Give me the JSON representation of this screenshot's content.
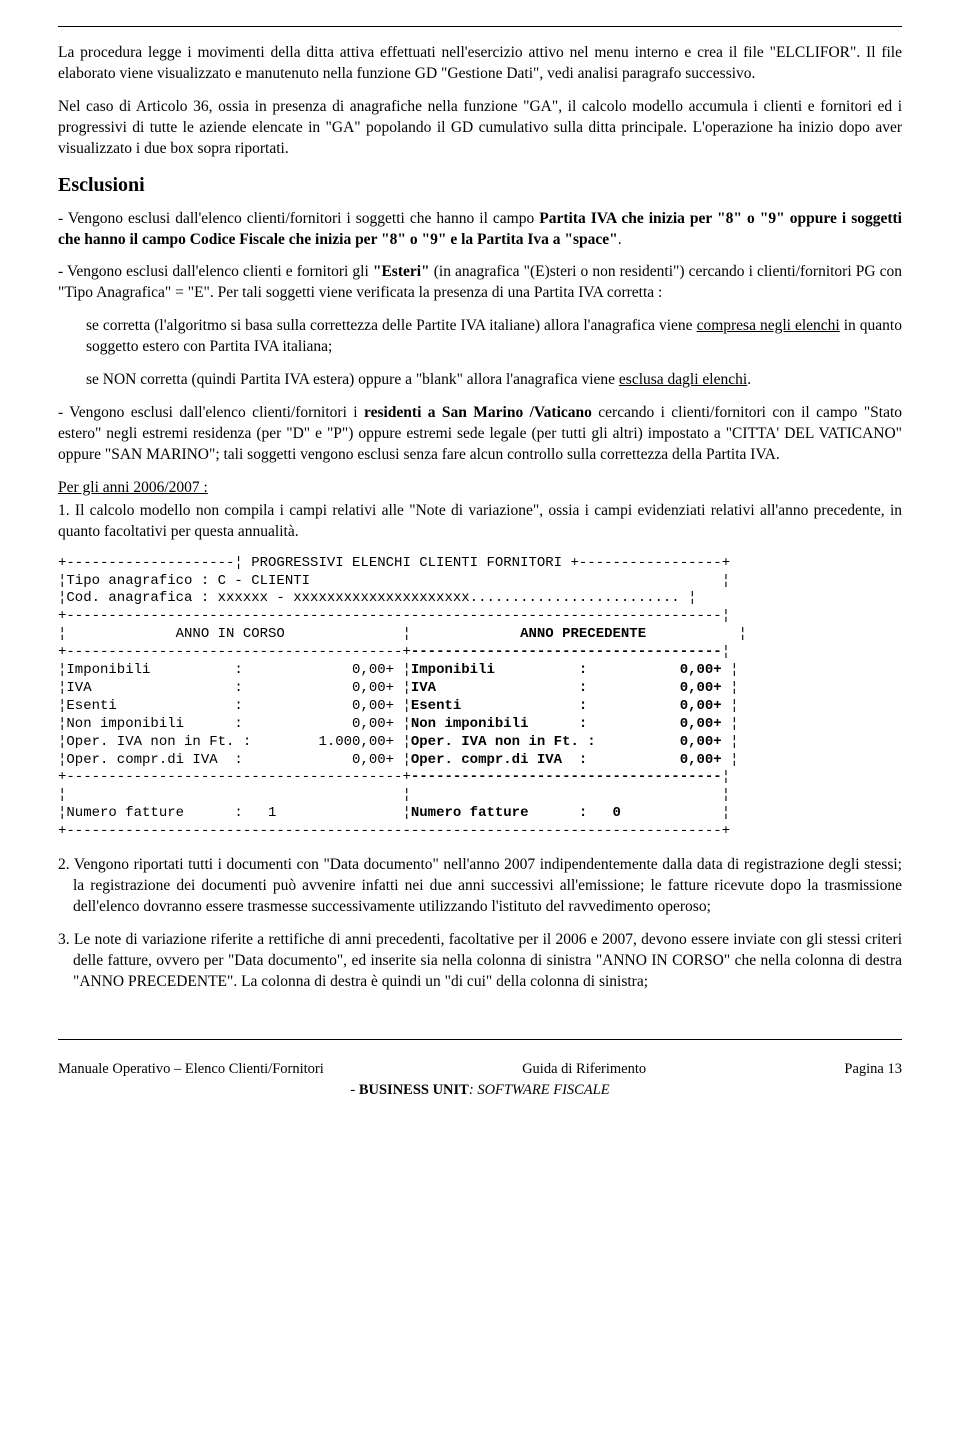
{
  "hr_top": true,
  "p1": "La procedura legge i movimenti della ditta attiva effettuati nell'esercizio attivo nel menu interno e crea il file \"ELCLIFOR\". Il file elaborato viene visualizzato e manutenuto nella funzione GD \"Gestione Dati\", vedi analisi paragrafo successivo.",
  "p2": "Nel caso di Articolo 36, ossia in presenza di anagrafiche nella funzione \"GA\", il calcolo modello accumula i clienti e fornitori ed i progressivi di tutte le aziende elencate in \"GA\" popolando il GD cumulativo sulla ditta principale. L'operazione ha inizio dopo aver visualizzato i due box sopra riportati.",
  "h_esclusioni": "Esclusioni",
  "p3a": "- Vengono esclusi dall'elenco clienti/fornitori i soggetti che hanno il campo ",
  "p3b": "Partita IVA che inizia per \"8\" o \"9\" oppure i soggetti che hanno il campo Codice Fiscale che inizia per \"8\" o \"9\" e la Partita Iva a \"space\"",
  "p3c": ".",
  "p4a": "- Vengono esclusi dall'elenco clienti e fornitori gli ",
  "p4b": "\"Esteri\"",
  "p4c": " (in anagrafica \"(E)steri o non residenti\") cercando i clienti/fornitori PG con \"Tipo Anagrafica\" = \"E\". Per tali soggetti viene verificata la presenza di una Partita IVA corretta :",
  "p5a": "se corretta (l'algoritmo si basa sulla correttezza delle Partite IVA italiane) allora l'anagrafica viene ",
  "p5u": "compresa negli elenchi",
  "p5b": " in quanto soggetto estero con Partita IVA italiana;",
  "p6a": "se NON corretta (quindi Partita IVA estera) oppure a \"blank\" allora l'anagrafica viene ",
  "p6u": "esclusa dagli elenchi",
  "p6b": ".",
  "p7a": "- Vengono esclusi dall'elenco clienti/fornitori i ",
  "p7b": "residenti a San Marino /Vaticano",
  "p7c": " cercando i clienti/fornitori con il campo \"Stato estero\" negli estremi residenza (per \"D\" e \"P\") oppure estremi sede legale (per tutti gli altri) impostato a \"CITTA' DEL VATICANO\" oppure \"SAN MARINO\"; tali soggetti vengono esclusi senza fare alcun controllo sulla correttezza della Partita IVA.",
  "p8u": "Per gli anni 2006/2007 :",
  "p9": "1. Il calcolo modello non compila i campi relativi alle \"Note di variazione\", ossia i campi evidenziati relativi all'anno precedente, in quanto facoltativi per questa annualità.",
  "mono": {
    "font": "Courier New",
    "lines": [
      "+--------------------¦ PROGRESSIVI ELENCHI CLIENTI FORNITORI +-----------------+",
      "¦Tipo anagrafico : C - CLIENTI                                                 ¦",
      "¦Cod. anagrafica : xxxxxx - xxxxxxxxxxxxxxxxxxxxx......................... ¦",
      "+------------------------------------------------------------------------------¦",
      "¦             ANNO IN CORSO              ¦             <b>ANNO PRECEDENTE</b>           ¦",
      "+----------------------------------------+<b>-------------------------------------</b>¦",
      "¦Imponibili          :             0,00+ ¦<b>Imponibili          :           0,00+</b> ¦",
      "¦IVA                 :             0,00+ ¦<b>IVA                 :           0,00+</b> ¦",
      "¦Esenti              :             0,00+ ¦<b>Esenti              :           0,00+</b> ¦",
      "¦Non imponibili      :             0,00+ ¦<b>Non imponibili      :           0,00+</b> ¦",
      "¦Oper. IVA non in Ft. :        1.000,00+ ¦<b>Oper. IVA non in Ft. :          0,00+</b> ¦",
      "¦Oper. compr.di IVA  :             0,00+ ¦<b>Oper. compr.di IVA  :           0,00+</b> ¦",
      "+----------------------------------------+<b>-------------------------------------</b>¦",
      "¦                                        ¦                                     ¦",
      "¦Numero fatture      :   1               ¦<b>Numero fatture      :   0</b>            ¦",
      "+------------------------------------------------------------------------------+"
    ]
  },
  "p10": "2. Vengono riportati tutti i documenti con \"Data documento\" nell'anno 2007 indipendentemente dalla data di registrazione degli stessi; la registrazione dei documenti può avvenire infatti nei due anni successivi all'emissione; le fatture ricevute dopo la trasmissione dell'elenco dovranno essere trasmesse successivamente utilizzando l'istituto del ravvedimento operoso;",
  "p11": "3. Le note di variazione riferite a rettifiche di anni precedenti, facoltative per il 2006 e 2007, devono essere inviate con gli stessi criteri delle fatture, ovvero per \"Data documento\", ed inserite sia nella colonna di sinistra \"ANNO IN CORSO\" che nella colonna di destra \"ANNO PRECEDENTE\". La colonna di destra è quindi un \"di cui\" della colonna di sinistra;",
  "footer": {
    "left": "Manuale Operativo – Elenco Clienti/Fornitori",
    "mid": "Guida di Riferimento",
    "right": "Pagina 13",
    "sub_prefix": "- ",
    "sub_bold": "BUSINESS UNIT",
    "sub_suffix": ": SOFTWARE FISCALE"
  }
}
